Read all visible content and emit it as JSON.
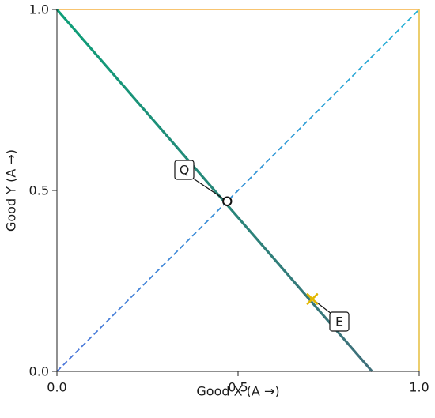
{
  "chart_data": {
    "type": "line",
    "xlabel": "Good X (A →)",
    "ylabel": "Good Y (A →)",
    "xlim": [
      0,
      1
    ],
    "ylim": [
      0,
      1
    ],
    "x_ticks": [
      "0.0",
      "0.5",
      "1.0"
    ],
    "y_ticks": [
      "0.0",
      "0.5",
      "1.0"
    ],
    "grid": false,
    "series": [
      {
        "kind": "budget-line",
        "color": "#1aa37a",
        "points": [
          [
            0.0,
            1.0
          ],
          [
            0.87,
            0.0
          ]
        ]
      },
      {
        "kind": "diagonal",
        "style": "dashed",
        "color": "#2a9fd6",
        "points": [
          [
            0.0,
            0.0
          ],
          [
            1.0,
            1.0
          ]
        ]
      },
      {
        "kind": "box-top",
        "color": "#f5b041",
        "points": [
          [
            0.0,
            1.0
          ],
          [
            1.0,
            1.0
          ]
        ]
      },
      {
        "kind": "box-right",
        "color": "#e8c24a",
        "points": [
          [
            1.0,
            1.0
          ],
          [
            1.0,
            0.0
          ]
        ]
      }
    ],
    "annotations": [
      {
        "label": "Q",
        "x": 0.47,
        "y": 0.47,
        "marker": "open-circle"
      },
      {
        "label": "E",
        "x": 0.705,
        "y": 0.2,
        "marker": "x",
        "color": "#e3b800"
      }
    ]
  }
}
